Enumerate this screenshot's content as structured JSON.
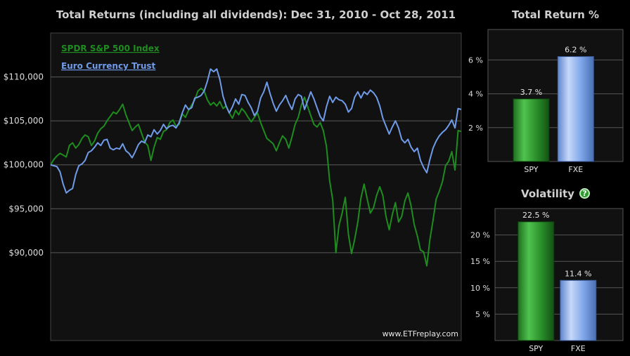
{
  "main_title": "Total Returns (including all dividends): Dec 31, 2010 - Oct 28, 2011",
  "return_title": "Total Return %",
  "volatility_title": "Volatility",
  "help_icon_glyph": "?",
  "watermark": "www.ETFreplay.com",
  "colors": {
    "spy": "#1e8c1e",
    "fxe": "#6f9be8",
    "background": "#000000",
    "plot_background": "#111111",
    "grid": "#5a5a5a"
  },
  "chart_data": [
    {
      "type": "line",
      "title": "Total Returns (including all dividends): Dec 31, 2010 - Oct 28, 2011",
      "x_start": "Dec 31, 2010",
      "x_end": "Oct 28, 2011",
      "ylim": [
        80000,
        115000
      ],
      "y_ticks": [
        90000,
        95000,
        100000,
        105000,
        110000
      ],
      "y_tick_labels": [
        "$90,000",
        "$95,000",
        "$100,000",
        "$105,000",
        "$110,000"
      ],
      "legend_position": "top-left",
      "series": [
        {
          "name": "SPDR S&P 500 Index",
          "color": "#1e8c1e",
          "values": [
            100000,
            100600,
            101000,
            101300,
            101100,
            100900,
            102200,
            102500,
            101900,
            102300,
            103000,
            103400,
            103200,
            102200,
            102700,
            103600,
            104100,
            104400,
            105000,
            105500,
            106000,
            105800,
            106300,
            106900,
            105700,
            104800,
            103900,
            104300,
            104600,
            103600,
            102600,
            102200,
            100500,
            102000,
            103100,
            102900,
            103800,
            104000,
            104800,
            105100,
            104400,
            104600,
            105800,
            105400,
            106200,
            106800,
            107400,
            108400,
            108700,
            108400,
            107400,
            106800,
            107100,
            106700,
            107200,
            106400,
            106700,
            105900,
            105300,
            106200,
            105700,
            106400,
            106000,
            105400,
            104900,
            105400,
            105900,
            104800,
            103900,
            103000,
            102700,
            102400,
            101600,
            102500,
            103300,
            102900,
            101900,
            103200,
            104600,
            105400,
            106800,
            107700,
            106600,
            105600,
            104600,
            104300,
            104800,
            103900,
            102100,
            98200,
            96000,
            90000,
            93100,
            94500,
            96300,
            92100,
            89900,
            91500,
            93500,
            96200,
            97800,
            96100,
            94500,
            95100,
            96500,
            97500,
            96500,
            94100,
            92600,
            94300,
            95700,
            93500,
            94100,
            95900,
            96800,
            95300,
            93200,
            91900,
            90300,
            90100,
            88500,
            91500,
            93700,
            96100,
            97000,
            98100,
            99900,
            100400,
            101500,
            99400,
            103900,
            103800
          ]
        },
        {
          "name": "Euro Currency Trust",
          "color": "#6f9be8",
          "values": [
            100000,
            99900,
            99800,
            99200,
            97800,
            96800,
            97100,
            97300,
            98900,
            99900,
            100100,
            100500,
            101400,
            101600,
            102000,
            102500,
            102200,
            102800,
            102900,
            101900,
            101700,
            101900,
            101800,
            102400,
            101600,
            101300,
            100800,
            101500,
            102300,
            102700,
            102500,
            103400,
            103200,
            104000,
            103500,
            103900,
            104600,
            104100,
            104400,
            104500,
            104200,
            104800,
            105900,
            106800,
            106300,
            106500,
            107600,
            107700,
            107900,
            108400,
            109500,
            110900,
            110600,
            110900,
            109700,
            107800,
            106700,
            105900,
            106600,
            107500,
            106900,
            108000,
            107900,
            107100,
            106500,
            105600,
            106100,
            107600,
            108300,
            109400,
            108100,
            107000,
            106100,
            106800,
            107300,
            107900,
            107000,
            106300,
            107500,
            108000,
            107800,
            106300,
            107300,
            108300,
            107500,
            106500,
            105500,
            105000,
            106600,
            107800,
            107100,
            107700,
            107400,
            107300,
            106900,
            106000,
            106400,
            107700,
            108300,
            107600,
            108300,
            108000,
            108500,
            108200,
            107700,
            106700,
            105300,
            104400,
            103500,
            104300,
            105000,
            104200,
            102900,
            102500,
            102900,
            102000,
            101500,
            101900,
            100500,
            99700,
            99100,
            100600,
            101900,
            102700,
            103300,
            103700,
            104000,
            104500,
            105100,
            104200,
            106400,
            106300
          ]
        }
      ]
    },
    {
      "type": "bar",
      "title": "Total Return %",
      "categories": [
        "SPY",
        "FXE"
      ],
      "values": [
        3.7,
        6.2
      ],
      "value_labels": [
        "3.7 %",
        "6.2 %"
      ],
      "ylim": [
        0,
        7.8
      ],
      "y_ticks": [
        2,
        4,
        6
      ],
      "y_tick_labels": [
        "2 %",
        "4 %",
        "6 %"
      ]
    },
    {
      "type": "bar",
      "title": "Volatility",
      "categories": [
        "SPY",
        "FXE"
      ],
      "values": [
        22.5,
        11.4
      ],
      "value_labels": [
        "22.5 %",
        "11.4 %"
      ],
      "ylim": [
        0,
        25
      ],
      "y_ticks": [
        5,
        10,
        15,
        20
      ],
      "y_tick_labels": [
        "5 %",
        "10 %",
        "15 %",
        "20 %"
      ]
    }
  ]
}
